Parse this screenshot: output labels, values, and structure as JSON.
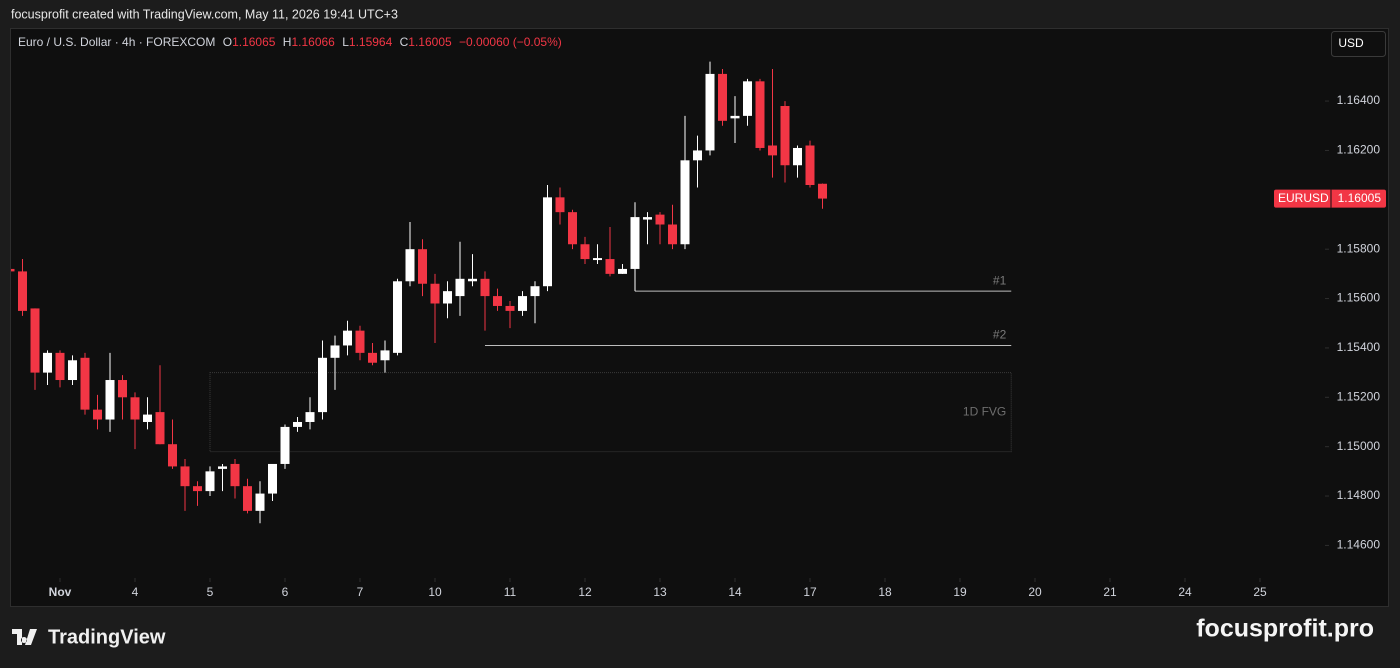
{
  "header": {
    "caption": "focusprofit created with TradingView.com, May 11, 2026 19:41 UTC+3"
  },
  "chart_data": {
    "type": "candlestick",
    "title": "Euro / U.S. Dollar · 4h · FOREXCOM",
    "ohlc_labels": [
      "O",
      "H",
      "L",
      "C"
    ],
    "change_label": "−0.00060 (−0.05%)",
    "currency": "USD",
    "series": [
      {
        "name": "EURUSD",
        "open": [
          1.1572,
          1.1571,
          1.1556,
          1.153,
          1.1538,
          1.1527,
          1.1536,
          1.1515,
          1.1511,
          1.1527,
          1.152,
          1.151,
          1.1514,
          1.1501,
          1.1492,
          1.1484,
          1.1482,
          1.1491,
          1.1493,
          1.1484,
          1.1474,
          1.1481,
          1.1493,
          1.1508,
          1.151,
          1.1514,
          1.1536,
          1.1541,
          1.1547,
          1.1538,
          1.1535,
          1.1538,
          1.1567,
          1.158,
          1.1566,
          1.1558,
          1.1561,
          1.1567,
          1.1568,
          1.1561,
          1.1557,
          1.1555,
          1.1561,
          1.1565,
          1.1601,
          1.1595,
          1.1582,
          1.15756,
          1.1576,
          1.157,
          1.1572,
          1.1592,
          1.1594,
          1.159,
          1.1582,
          1.1616,
          1.162,
          1.1651,
          1.1633,
          1.1634,
          1.1648,
          1.1622,
          1.1638,
          1.1614,
          1.1622,
          1.16065
        ],
        "high": [
          1.1573,
          1.1576,
          1.1556,
          1.1539,
          1.1539,
          1.1537,
          1.1538,
          1.1521,
          1.1538,
          1.1529,
          1.1522,
          1.152,
          1.1533,
          1.1511,
          1.1495,
          1.1486,
          1.1492,
          1.1493,
          1.1495,
          1.1487,
          1.1486,
          1.1493,
          1.1509,
          1.1512,
          1.152,
          1.1543,
          1.1545,
          1.1551,
          1.1549,
          1.1542,
          1.1543,
          1.1568,
          1.1591,
          1.1584,
          1.157,
          1.1567,
          1.1583,
          1.1578,
          1.1571,
          1.1564,
          1.1559,
          1.1563,
          1.1567,
          1.1606,
          1.1605,
          1.1596,
          1.1585,
          1.1582,
          1.1589,
          1.1574,
          1.1599,
          1.1595,
          1.1595,
          1.1598,
          1.1634,
          1.1626,
          1.1656,
          1.1653,
          1.1642,
          1.1649,
          1.1649,
          1.1653,
          1.164,
          1.1622,
          1.1624,
          1.16066
        ],
        "low": [
          1.1567,
          1.1553,
          1.1523,
          1.1525,
          1.1524,
          1.1525,
          1.1513,
          1.1507,
          1.1506,
          1.1511,
          1.1499,
          1.1507,
          1.1501,
          1.1491,
          1.1474,
          1.1476,
          1.148,
          1.1482,
          1.1479,
          1.1473,
          1.1469,
          1.1478,
          1.1491,
          1.1506,
          1.1507,
          1.1511,
          1.1523,
          1.1537,
          1.1535,
          1.1533,
          1.153,
          1.1537,
          1.1565,
          1.1561,
          1.1542,
          1.1552,
          1.1553,
          1.1565,
          1.1547,
          1.1555,
          1.1548,
          1.1553,
          1.155,
          1.1563,
          1.159,
          1.158,
          1.1574,
          1.1574,
          1.1569,
          1.157,
          1.1563,
          1.1582,
          1.1582,
          1.158,
          1.158,
          1.1605,
          1.1618,
          1.163,
          1.1623,
          1.163,
          1.162,
          1.1609,
          1.1607,
          1.1609,
          1.1605,
          1.15964
        ],
        "close": [
          1.1571,
          1.1555,
          1.153,
          1.1538,
          1.1527,
          1.1535,
          1.1515,
          1.1511,
          1.1527,
          1.152,
          1.1511,
          1.1513,
          1.1501,
          1.1492,
          1.1484,
          1.1482,
          1.149,
          1.1492,
          1.1484,
          1.1474,
          1.1481,
          1.1493,
          1.1508,
          1.151,
          1.1514,
          1.1536,
          1.1541,
          1.1547,
          1.1538,
          1.1534,
          1.1539,
          1.1567,
          1.158,
          1.1566,
          1.1558,
          1.1563,
          1.1568,
          1.1568,
          1.1561,
          1.1557,
          1.1555,
          1.1561,
          1.1565,
          1.1601,
          1.1595,
          1.1582,
          1.1576,
          1.15764,
          1.157,
          1.1572,
          1.1593,
          1.1593,
          1.159,
          1.1582,
          1.1616,
          1.162,
          1.1651,
          1.1632,
          1.1634,
          1.1648,
          1.1621,
          1.1618,
          1.1614,
          1.1621,
          1.1606,
          1.16005
        ]
      }
    ],
    "up_color": "#ffffff",
    "down_color": "#f23645",
    "xlim": [
      0,
      105.2
    ],
    "xticks": [
      {
        "value": 4,
        "label": "Nov"
      },
      {
        "value": 10,
        "label": "4"
      },
      {
        "value": 16,
        "label": "5"
      },
      {
        "value": 22,
        "label": "6"
      },
      {
        "value": 28,
        "label": "7"
      },
      {
        "value": 34,
        "label": "10"
      },
      {
        "value": 40,
        "label": "11"
      },
      {
        "value": 46,
        "label": "12"
      },
      {
        "value": 52,
        "label": "13"
      },
      {
        "value": 58,
        "label": "14"
      },
      {
        "value": 64,
        "label": "17"
      },
      {
        "value": 70,
        "label": "18"
      },
      {
        "value": 76,
        "label": "19"
      },
      {
        "value": 82,
        "label": "20"
      },
      {
        "value": 88,
        "label": "21"
      },
      {
        "value": 94,
        "label": "24"
      },
      {
        "value": 100,
        "label": "25"
      }
    ],
    "ylim": [
      1.14468,
      1.16696
    ],
    "yticks": [
      {
        "value": 1.146,
        "label": "1.14600"
      },
      {
        "value": 1.148,
        "label": "1.14800"
      },
      {
        "value": 1.15,
        "label": "1.15000"
      },
      {
        "value": 1.152,
        "label": "1.15200"
      },
      {
        "value": 1.154,
        "label": "1.15400"
      },
      {
        "value": 1.156,
        "label": "1.15600"
      },
      {
        "value": 1.158,
        "label": "1.15800"
      },
      {
        "value": 1.162,
        "label": "1.16200"
      },
      {
        "value": 1.164,
        "label": "1.16400"
      }
    ],
    "levels": [
      {
        "label": "#1",
        "value": 1.1563,
        "from": 50,
        "to": 80.1
      },
      {
        "label": "#2",
        "value": 1.1541,
        "from": 38,
        "to": 80.1
      }
    ],
    "zones": [
      {
        "label": "1D FVG",
        "top": 1.153,
        "bottom": 1.1498,
        "from": 16,
        "to": 80.1
      }
    ]
  },
  "footer": {
    "logo": "TradingView",
    "watermark": "focusprofit.pro"
  }
}
